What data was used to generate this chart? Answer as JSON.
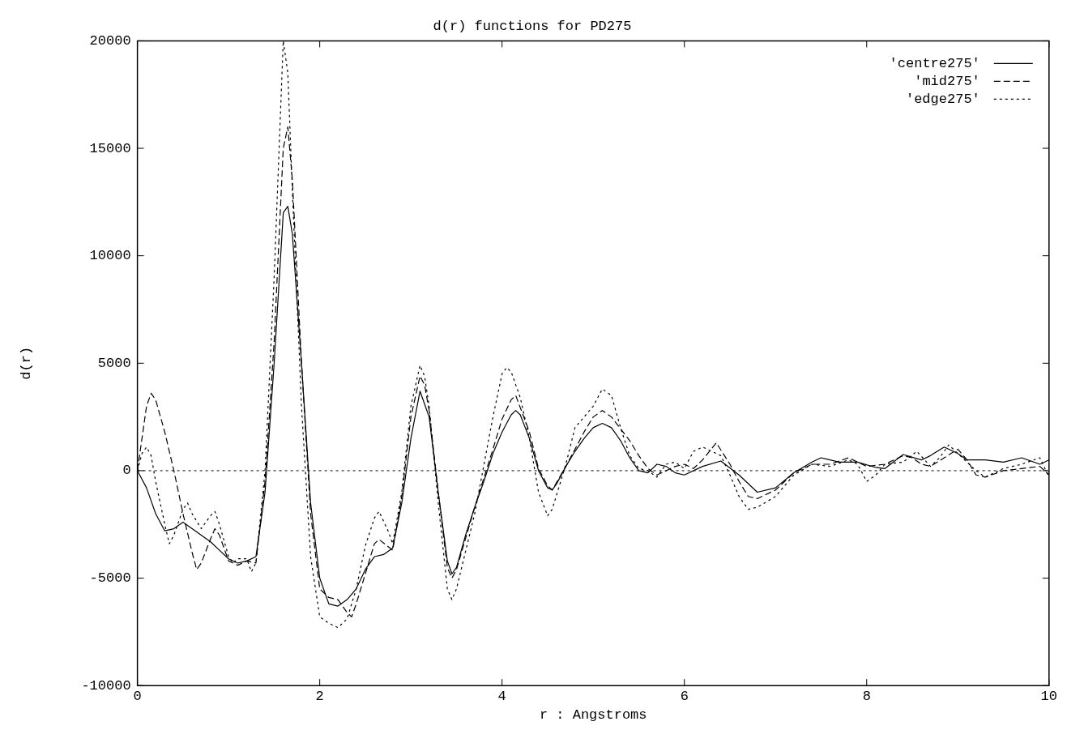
{
  "chart_data": {
    "type": "line",
    "title": "d(r) functions for PD275",
    "xlabel": "r : Angstroms",
    "ylabel": "d(r)",
    "xlim": [
      0,
      10
    ],
    "xticks": [
      0,
      2,
      4,
      6,
      8,
      10
    ],
    "ylim": [
      -10000,
      20000
    ],
    "yticks": [
      -10000,
      -5000,
      0,
      5000,
      10000,
      15000,
      20000
    ],
    "grid": false,
    "legend": "top right",
    "marker": "none",
    "ref_lines": [
      {
        "axis": "y",
        "value": 0,
        "label": null,
        "line_style": "dotted",
        "color": "#000000"
      }
    ],
    "series": [
      {
        "name": "'centre275'",
        "color": "#000000",
        "line_style": "solid",
        "x": [
          0,
          0.1,
          0.2,
          0.3,
          0.4,
          0.5,
          0.6,
          0.7,
          0.8,
          0.9,
          1.0,
          1.1,
          1.2,
          1.3,
          1.4,
          1.5,
          1.6,
          1.65,
          1.7,
          1.8,
          1.9,
          2.0,
          2.1,
          2.2,
          2.3,
          2.4,
          2.5,
          2.6,
          2.7,
          2.8,
          2.9,
          3.0,
          3.1,
          3.2,
          3.3,
          3.4,
          3.45,
          3.5,
          3.6,
          3.7,
          3.8,
          3.9,
          4.0,
          4.1,
          4.15,
          4.2,
          4.3,
          4.4,
          4.5,
          4.55,
          4.6,
          4.7,
          4.8,
          4.9,
          5.0,
          5.1,
          5.2,
          5.3,
          5.4,
          5.5,
          5.6,
          5.7,
          5.8,
          5.9,
          6.0,
          6.2,
          6.4,
          6.6,
          6.8,
          7.0,
          7.2,
          7.4,
          7.5,
          7.7,
          7.9,
          8.1,
          8.2,
          8.4,
          8.6,
          8.7,
          8.85,
          9.0,
          9.1,
          9.3,
          9.5,
          9.7,
          9.9,
          10
        ],
        "values": [
          0,
          -800,
          -2000,
          -2800,
          -2700,
          -2400,
          -2700,
          -3000,
          -3300,
          -3700,
          -4100,
          -4300,
          -4200,
          -4000,
          -1000,
          5000,
          12000,
          12300,
          11000,
          5000,
          -1500,
          -5000,
          -6200,
          -6300,
          -6000,
          -5500,
          -4600,
          -4000,
          -3900,
          -3600,
          -1500,
          1500,
          3700,
          2500,
          -1000,
          -4200,
          -4800,
          -4500,
          -3000,
          -1700,
          -500,
          800,
          1800,
          2600,
          2800,
          2600,
          1500,
          0,
          -800,
          -900,
          -600,
          200,
          900,
          1500,
          2000,
          2200,
          2000,
          1400,
          600,
          0,
          -100,
          300,
          200,
          -100,
          -200,
          200,
          450,
          -200,
          -1000,
          -800,
          -100,
          400,
          600,
          400,
          400,
          150,
          100,
          750,
          500,
          700,
          1100,
          800,
          500,
          500,
          400,
          600,
          300,
          500
        ]
      },
      {
        "name": "'mid275'",
        "color": "#000000",
        "line_style": "dashed",
        "x": [
          0,
          0.1,
          0.15,
          0.2,
          0.3,
          0.4,
          0.5,
          0.6,
          0.65,
          0.7,
          0.8,
          0.85,
          0.9,
          1.0,
          1.1,
          1.2,
          1.3,
          1.4,
          1.5,
          1.6,
          1.65,
          1.7,
          1.8,
          1.9,
          2.0,
          2.1,
          2.2,
          2.3,
          2.35,
          2.4,
          2.5,
          2.6,
          2.65,
          2.8,
          2.9,
          3.0,
          3.1,
          3.15,
          3.2,
          3.3,
          3.4,
          3.45,
          3.5,
          3.7,
          3.9,
          4.0,
          4.1,
          4.15,
          4.3,
          4.4,
          4.5,
          4.55,
          4.7,
          4.9,
          5.0,
          5.1,
          5.2,
          5.4,
          5.5,
          5.6,
          5.7,
          5.8,
          5.9,
          6.0,
          6.1,
          6.2,
          6.35,
          6.5,
          6.6,
          6.7,
          6.8,
          7.0,
          7.2,
          7.4,
          7.6,
          7.8,
          7.9,
          8.0,
          8.2,
          8.3,
          8.4,
          8.5,
          8.6,
          8.7,
          8.85,
          9.0,
          9.1,
          9.2,
          9.3,
          9.5,
          9.7,
          9.9,
          10
        ],
        "values": [
          0,
          3000,
          3600,
          3300,
          1800,
          0,
          -2000,
          -3800,
          -4600,
          -4300,
          -3200,
          -2700,
          -3000,
          -4200,
          -4400,
          -4200,
          -4300,
          -500,
          6000,
          15000,
          16000,
          13500,
          5000,
          -2000,
          -5500,
          -5900,
          -6000,
          -6600,
          -6800,
          -6200,
          -4800,
          -3400,
          -3200,
          -3700,
          -1200,
          2500,
          4400,
          4000,
          2800,
          -1000,
          -4500,
          -5000,
          -4600,
          -1700,
          1000,
          2400,
          3300,
          3500,
          1800,
          100,
          -700,
          -900,
          200,
          1800,
          2500,
          2800,
          2500,
          1400,
          700,
          100,
          -200,
          0,
          200,
          300,
          100,
          500,
          1300,
          300,
          -500,
          -1200,
          -1300,
          -900,
          -100,
          300,
          300,
          600,
          400,
          200,
          300,
          500,
          700,
          600,
          300,
          200,
          600,
          1000,
          500,
          -200,
          -300,
          0,
          100,
          200,
          -200
        ]
      },
      {
        "name": "'edge275'",
        "color": "#000000",
        "line_style": "dotted",
        "x": [
          0,
          0.05,
          0.1,
          0.15,
          0.2,
          0.3,
          0.35,
          0.4,
          0.5,
          0.55,
          0.6,
          0.7,
          0.8,
          0.85,
          0.9,
          1.0,
          1.05,
          1.1,
          1.2,
          1.25,
          1.3,
          1.4,
          1.5,
          1.6,
          1.65,
          1.7,
          1.8,
          1.9,
          2.0,
          2.1,
          2.2,
          2.3,
          2.4,
          2.5,
          2.6,
          2.65,
          2.75,
          2.8,
          2.9,
          3.0,
          3.1,
          3.15,
          3.2,
          3.3,
          3.4,
          3.45,
          3.5,
          3.7,
          3.9,
          4.0,
          4.05,
          4.1,
          4.2,
          4.3,
          4.4,
          4.5,
          4.55,
          4.7,
          4.8,
          5.0,
          5.1,
          5.2,
          5.3,
          5.4,
          5.5,
          5.6,
          5.7,
          5.8,
          5.9,
          6.0,
          6.1,
          6.2,
          6.3,
          6.4,
          6.5,
          6.6,
          6.7,
          6.8,
          7.0,
          7.2,
          7.4,
          7.6,
          7.8,
          7.9,
          8.0,
          8.1,
          8.2,
          8.4,
          8.55,
          8.7,
          8.8,
          8.9,
          9.0,
          9.2,
          9.3,
          9.5,
          9.7,
          9.9,
          10
        ],
        "values": [
          0,
          800,
          1100,
          700,
          -500,
          -2500,
          -3400,
          -3000,
          -1800,
          -1500,
          -2000,
          -2700,
          -2100,
          -1900,
          -2500,
          -4000,
          -4300,
          -4100,
          -4100,
          -4700,
          -4300,
          0,
          9000,
          20000,
          18500,
          13000,
          3000,
          -4000,
          -6800,
          -7100,
          -7300,
          -6900,
          -5500,
          -3500,
          -2200,
          -1900,
          -2800,
          -3400,
          -1000,
          3000,
          4900,
          4400,
          3000,
          -1500,
          -5500,
          -6000,
          -5500,
          -2000,
          2500,
          4500,
          4800,
          4600,
          3400,
          1500,
          -1000,
          -2100,
          -1800,
          300,
          2000,
          3000,
          3800,
          3500,
          2000,
          700,
          100,
          0,
          -300,
          300,
          400,
          100,
          900,
          1100,
          900,
          700,
          -200,
          -1200,
          -1800,
          -1700,
          -1200,
          -200,
          300,
          200,
          500,
          300,
          -500,
          -200,
          300,
          400,
          900,
          200,
          600,
          1200,
          800,
          0,
          -300,
          100,
          300,
          600,
          -300
        ]
      }
    ]
  }
}
